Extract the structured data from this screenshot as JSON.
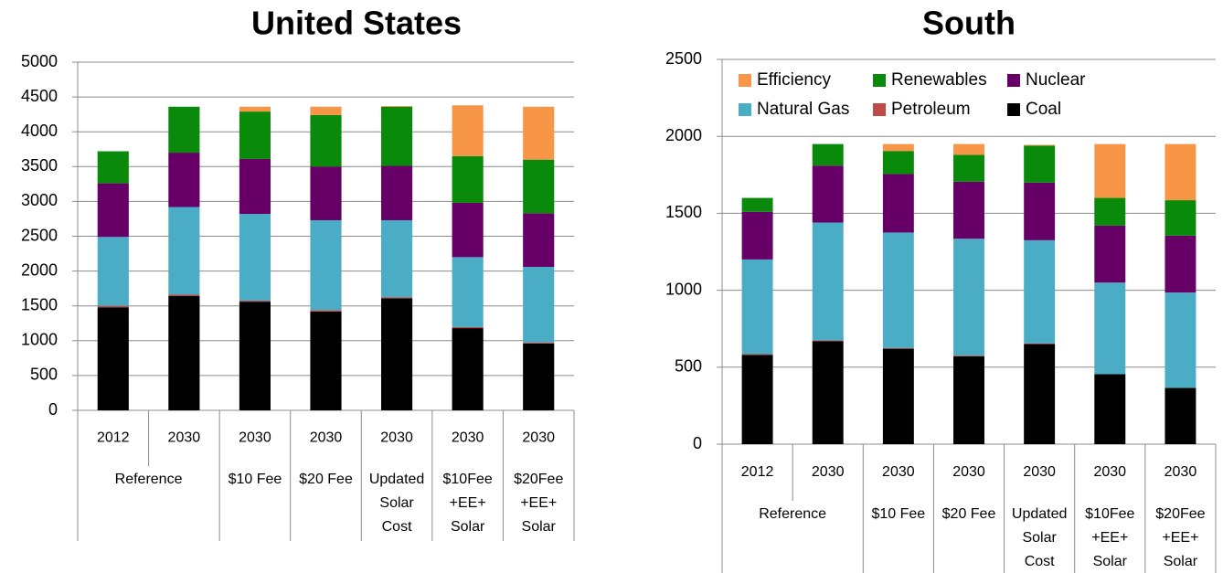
{
  "chart_data": [
    {
      "type": "bar",
      "stacked": true,
      "title": "United States",
      "categories": [
        "2012",
        "2030",
        "2030",
        "2030",
        "2030",
        "2030",
        "2030"
      ],
      "category_groups": [
        [
          "Reference"
        ],
        null,
        [
          "$10 Fee"
        ],
        [
          "$20 Fee"
        ],
        [
          "Updated",
          "Solar",
          "Cost"
        ],
        [
          "$10Fee",
          "+EE+",
          "Solar"
        ],
        [
          "$20Fee",
          "+EE+",
          "Solar"
        ]
      ],
      "series": [
        {
          "name": "Coal",
          "color": "#000000",
          "values": [
            1480,
            1640,
            1560,
            1420,
            1610,
            1180,
            960
          ]
        },
        {
          "name": "Petroleum",
          "color": "#be4b48",
          "values": [
            20,
            20,
            15,
            20,
            15,
            15,
            15
          ]
        },
        {
          "name": "Natural Gas",
          "color": "#4bacc6",
          "values": [
            990,
            1260,
            1245,
            1290,
            1105,
            1005,
            1085
          ]
        },
        {
          "name": "Nuclear",
          "color": "#660066",
          "values": [
            770,
            780,
            790,
            770,
            780,
            780,
            770
          ]
        },
        {
          "name": "Renewables",
          "color": "#0a8a0a",
          "values": [
            460,
            660,
            680,
            740,
            850,
            670,
            770
          ]
        },
        {
          "name": "Efficiency",
          "color": "#f79646",
          "values": [
            0,
            0,
            70,
            120,
            10,
            730,
            760
          ]
        }
      ],
      "ylim": [
        0,
        5000
      ],
      "yticks": [
        0,
        500,
        1000,
        1500,
        2000,
        2500,
        3000,
        3500,
        4000,
        4500,
        5000
      ],
      "grid": true
    },
    {
      "type": "bar",
      "stacked": true,
      "title": "South",
      "categories": [
        "2012",
        "2030",
        "2030",
        "2030",
        "2030",
        "2030",
        "2030"
      ],
      "category_groups": [
        [
          "Reference"
        ],
        null,
        [
          "$10 Fee"
        ],
        [
          "$20 Fee"
        ],
        [
          "Updated",
          "Solar",
          "Cost"
        ],
        [
          "$10Fee",
          "+EE+",
          "Solar"
        ],
        [
          "$20Fee",
          "+EE+",
          "Solar"
        ]
      ],
      "series": [
        {
          "name": "Coal",
          "color": "#000000",
          "values": [
            580,
            670,
            620,
            570,
            650,
            455,
            365
          ]
        },
        {
          "name": "Petroleum",
          "color": "#be4b48",
          "values": [
            5,
            5,
            5,
            5,
            5,
            0,
            0
          ]
        },
        {
          "name": "Natural Gas",
          "color": "#4bacc6",
          "values": [
            615,
            765,
            750,
            760,
            670,
            595,
            620
          ]
        },
        {
          "name": "Nuclear",
          "color": "#660066",
          "values": [
            310,
            370,
            380,
            370,
            375,
            370,
            370
          ]
        },
        {
          "name": "Renewables",
          "color": "#0a8a0a",
          "values": [
            90,
            140,
            150,
            175,
            240,
            180,
            230
          ]
        },
        {
          "name": "Efficiency",
          "color": "#f79646",
          "values": [
            0,
            0,
            45,
            70,
            5,
            350,
            365
          ]
        }
      ],
      "ylim": [
        0,
        2500
      ],
      "yticks": [
        0,
        500,
        1000,
        1500,
        2000,
        2500
      ],
      "grid": true,
      "legend": "upper left"
    }
  ]
}
